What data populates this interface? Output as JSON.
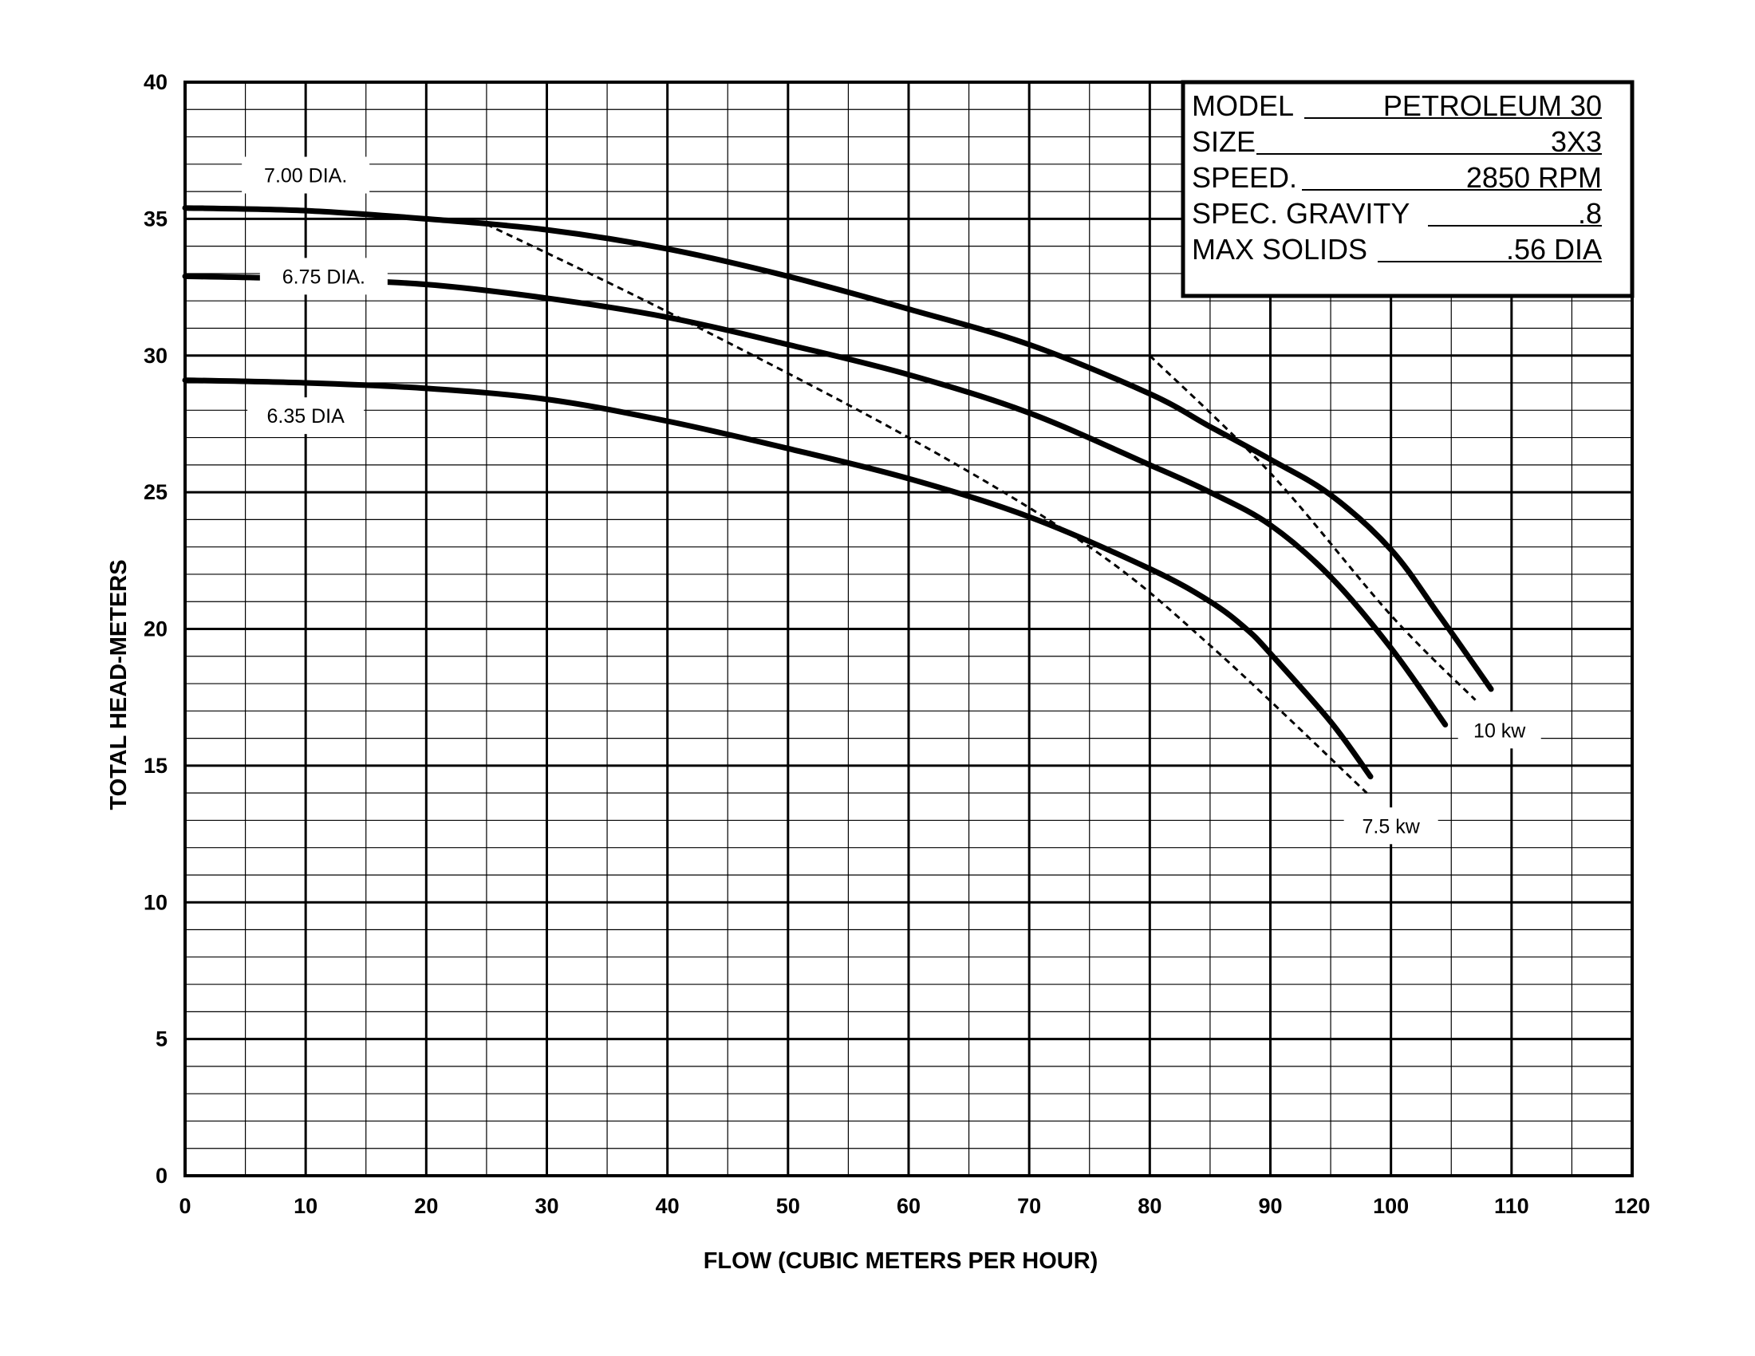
{
  "chart_data": {
    "type": "line",
    "xlabel": "FLOW (CUBIC METERS PER HOUR)",
    "ylabel": "TOTAL HEAD-METERS",
    "xlim": [
      0,
      120
    ],
    "ylim": [
      0,
      40
    ],
    "x_ticks": [
      "0",
      "10",
      "20",
      "30",
      "40",
      "50",
      "60",
      "70",
      "80",
      "90",
      "100",
      "110",
      "120"
    ],
    "y_ticks": [
      "0",
      "5",
      "10",
      "15",
      "20",
      "25",
      "30",
      "35",
      "40"
    ],
    "grid": {
      "major_x": 10,
      "minor_x": 5,
      "major_y": 5,
      "minor_y": 1
    },
    "series": [
      {
        "name": "7.00 DIA.",
        "style": "solid",
        "x": [
          0,
          10,
          20,
          30,
          40,
          50,
          60,
          70,
          80,
          85,
          90,
          95,
          100,
          104,
          108.3
        ],
        "y": [
          35.4,
          35.3,
          35.0,
          34.6,
          33.9,
          32.9,
          31.7,
          30.4,
          28.6,
          27.4,
          26.2,
          24.9,
          22.9,
          20.5,
          17.8
        ]
      },
      {
        "name": "6.75 DIA.",
        "style": "solid",
        "x": [
          0,
          10,
          20,
          30,
          40,
          50,
          60,
          70,
          80,
          85,
          90,
          95,
          100,
          104.5
        ],
        "y": [
          32.9,
          32.8,
          32.6,
          32.1,
          31.4,
          30.4,
          29.3,
          27.9,
          26.0,
          25.0,
          23.8,
          21.9,
          19.3,
          16.5
        ]
      },
      {
        "name": "6.35 DIA",
        "style": "solid",
        "x": [
          0,
          10,
          20,
          30,
          40,
          50,
          60,
          70,
          80,
          85,
          88,
          90,
          95,
          98.3
        ],
        "y": [
          29.1,
          29.0,
          28.8,
          28.4,
          27.6,
          26.6,
          25.5,
          24.1,
          22.2,
          21.0,
          20.0,
          19.1,
          16.6,
          14.6
        ]
      },
      {
        "name": "7.5 kw",
        "style": "dashed",
        "x": [
          25,
          40,
          60,
          75,
          85,
          98
        ],
        "y": [
          34.8,
          31.6,
          27.0,
          23.0,
          19.4,
          14.0
        ]
      },
      {
        "name": "10 kw",
        "style": "dashed",
        "x": [
          80,
          90,
          100,
          107
        ],
        "y": [
          30.0,
          25.7,
          20.5,
          17.4
        ]
      }
    ],
    "annotations": [
      {
        "text": "7.00 DIA.",
        "x": 10,
        "y": 36.6
      },
      {
        "text": "6.75 DIA.",
        "x": 11.5,
        "y": 32.9
      },
      {
        "text": "6.35 DIA",
        "x": 10,
        "y": 27.8
      },
      {
        "text": "10 kw",
        "x": 109,
        "y": 16.3
      },
      {
        "text": "7.5 kw",
        "x": 100,
        "y": 12.8
      }
    ]
  },
  "info_box": {
    "rows": [
      {
        "label": "MODEL",
        "value": "PETROLEUM 30"
      },
      {
        "label": "SIZE",
        "value": "3X3"
      },
      {
        "label": "SPEED.",
        "value": "2850 RPM"
      },
      {
        "label": "SPEC. GRAVITY",
        "value": ".8"
      },
      {
        "label": "MAX SOLIDS",
        "value": ".56 DIA"
      }
    ]
  }
}
